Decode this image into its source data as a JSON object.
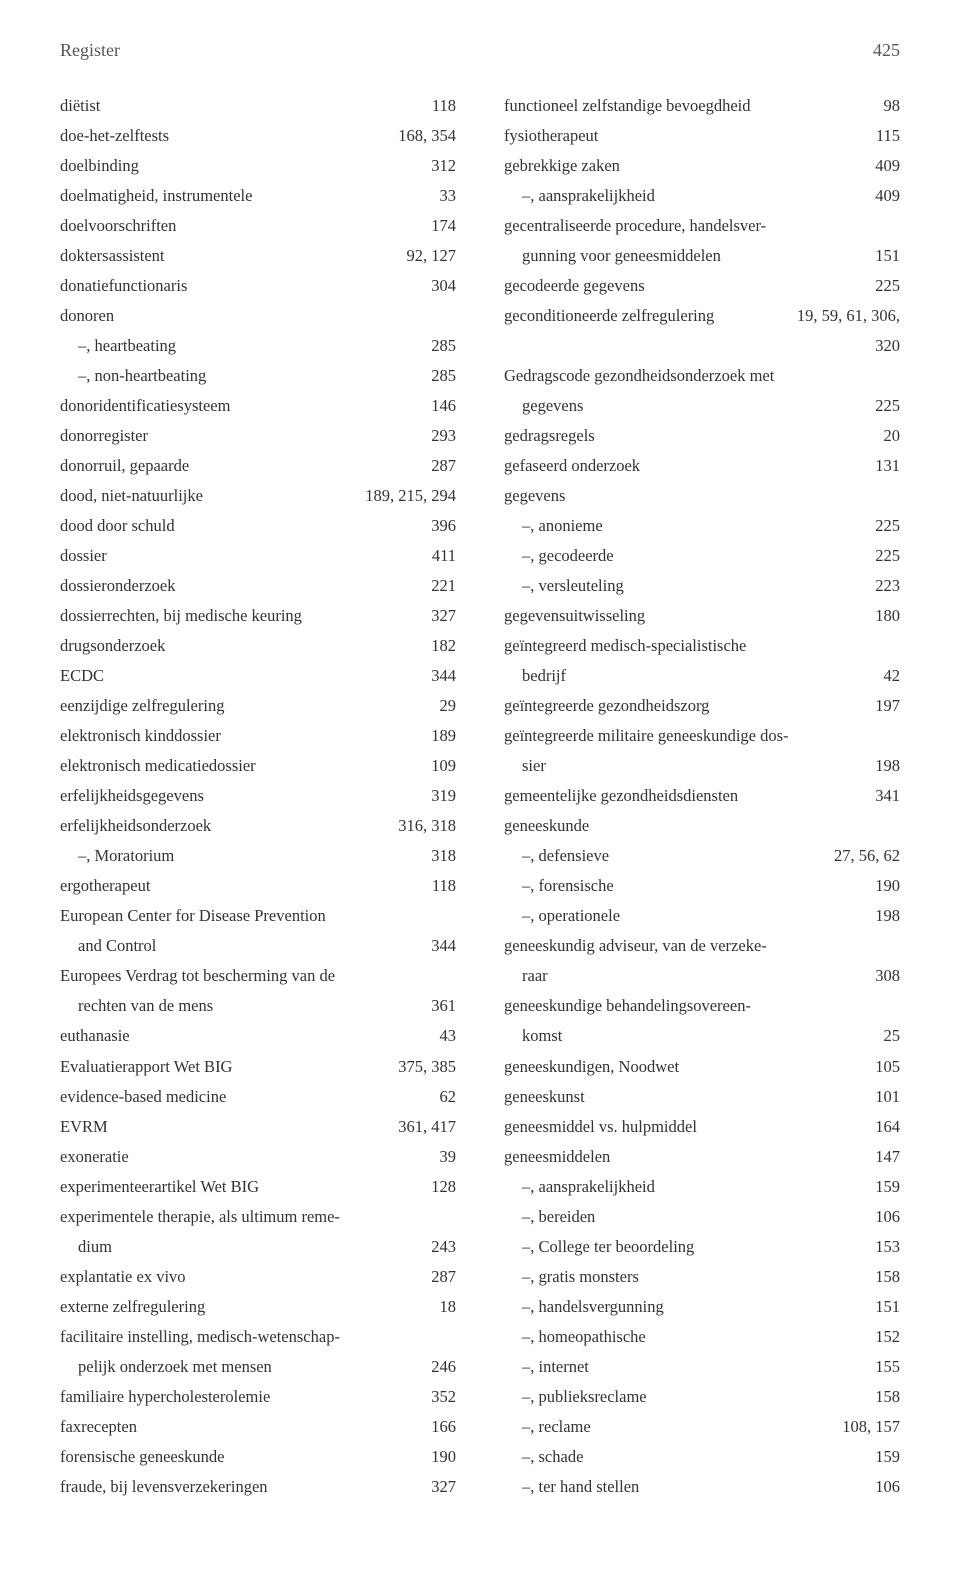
{
  "header": {
    "title": "Register",
    "page_number": "425"
  },
  "typography": {
    "body_fontsize_pt": 13,
    "header_fontsize_pt": 14,
    "line_height": 1.82,
    "text_color": "#333333",
    "header_color": "#555555",
    "background": "#ffffff"
  },
  "left": [
    {
      "term": "diëtist",
      "pages": "118"
    },
    {
      "term": "doe-het-zelftests",
      "pages": "168, 354"
    },
    {
      "term": "doelbinding",
      "pages": "312"
    },
    {
      "term": "doelmatigheid, instrumentele",
      "pages": "33"
    },
    {
      "term": "doelvoorschriften",
      "pages": "174"
    },
    {
      "term": "doktersassistent",
      "pages": "92, 127"
    },
    {
      "term": "donatiefunctionaris",
      "pages": "304"
    },
    {
      "term": "donoren",
      "pages": ""
    },
    {
      "term": "–, heartbeating",
      "pages": "285",
      "indent": 1
    },
    {
      "term": "–, non-heartbeating",
      "pages": "285",
      "indent": 1
    },
    {
      "term": "donoridentificatiesysteem",
      "pages": "146"
    },
    {
      "term": "donorregister",
      "pages": "293"
    },
    {
      "term": "donorruil, gepaarde",
      "pages": "287"
    },
    {
      "term": "dood, niet-natuurlijke",
      "pages": "189, 215, 294"
    },
    {
      "term": "dood door schuld",
      "pages": "396"
    },
    {
      "term": "dossier",
      "pages": "411"
    },
    {
      "term": "dossieronderzoek",
      "pages": "221"
    },
    {
      "term": "dossierrechten, bij medische keuring",
      "pages": "327"
    },
    {
      "term": "drugsonderzoek",
      "pages": "182"
    },
    {
      "term": "ECDC",
      "pages": "344"
    },
    {
      "term": "eenzijdige zelfregulering",
      "pages": "29"
    },
    {
      "term": "elektronisch kinddossier",
      "pages": "189"
    },
    {
      "term": "elektronisch medicatiedossier",
      "pages": "109"
    },
    {
      "term": "erfelijkheidsgegevens",
      "pages": "319"
    },
    {
      "term": "erfelijkheidsonderzoek",
      "pages": "316, 318"
    },
    {
      "term": "–, Moratorium",
      "pages": "318",
      "indent": 1
    },
    {
      "term": "ergotherapeut",
      "pages": "118"
    },
    {
      "term": "European Center for Disease Prevention",
      "pages": ""
    },
    {
      "term": "and Control",
      "pages": "344",
      "cont": true
    },
    {
      "term": "Europees Verdrag tot bescherming van de",
      "pages": ""
    },
    {
      "term": "rechten van de mens",
      "pages": "361",
      "cont": true
    },
    {
      "term": "euthanasie",
      "pages": "43"
    },
    {
      "term": "Evaluatierapport Wet BIG",
      "pages": "375, 385"
    },
    {
      "term": "evidence-based medicine",
      "pages": "62"
    },
    {
      "term": "EVRM",
      "pages": "361, 417"
    },
    {
      "term": "exoneratie",
      "pages": "39"
    },
    {
      "term": "experimenteerartikel Wet BIG",
      "pages": "128"
    },
    {
      "term": "experimentele therapie, als ultimum reme-",
      "pages": ""
    },
    {
      "term": "dium",
      "pages": "243",
      "cont": true
    },
    {
      "term": "explantatie ex vivo",
      "pages": "287"
    },
    {
      "term": "externe zelfregulering",
      "pages": "18"
    },
    {
      "term": "facilitaire instelling, medisch-wetenschap-",
      "pages": ""
    },
    {
      "term": "pelijk onderzoek met mensen",
      "pages": "246",
      "cont": true
    },
    {
      "term": "familiaire hypercholesterolemie",
      "pages": "352"
    },
    {
      "term": "faxrecepten",
      "pages": "166"
    },
    {
      "term": "forensische geneeskunde",
      "pages": "190"
    },
    {
      "term": "fraude, bij levensverzekeringen",
      "pages": "327"
    }
  ],
  "right": [
    {
      "term": "functioneel zelfstandige bevoegdheid",
      "pages": "98"
    },
    {
      "term": "fysiotherapeut",
      "pages": "115"
    },
    {
      "term": "gebrekkige zaken",
      "pages": "409"
    },
    {
      "term": "–, aansprakelijkheid",
      "pages": "409",
      "indent": 1
    },
    {
      "term": "gecentraliseerde procedure, handelsver-",
      "pages": ""
    },
    {
      "term": "gunning voor geneesmiddelen",
      "pages": "151",
      "cont": true
    },
    {
      "term": "gecodeerde gegevens",
      "pages": "225"
    },
    {
      "term": "geconditioneerde zelfregulering",
      "pages": "19, 59, 61, 306,"
    },
    {
      "term": "",
      "pages": "320",
      "blank": true
    },
    {
      "term": "Gedragscode gezondheidsonderzoek met",
      "pages": ""
    },
    {
      "term": "gegevens",
      "pages": "225",
      "cont": true
    },
    {
      "term": "gedragsregels",
      "pages": "20"
    },
    {
      "term": "gefaseerd onderzoek",
      "pages": "131"
    },
    {
      "term": "gegevens",
      "pages": ""
    },
    {
      "term": "–, anonieme",
      "pages": "225",
      "indent": 1
    },
    {
      "term": "–, gecodeerde",
      "pages": "225",
      "indent": 1
    },
    {
      "term": "–, versleuteling",
      "pages": "223",
      "indent": 1
    },
    {
      "term": "gegevensuitwisseling",
      "pages": "180"
    },
    {
      "term": "geïntegreerd medisch-specialistische",
      "pages": ""
    },
    {
      "term": "bedrijf",
      "pages": "42",
      "cont": true
    },
    {
      "term": "geïntegreerde gezondheidszorg",
      "pages": "197"
    },
    {
      "term": "geïntegreerde militaire geneeskundige dos-",
      "pages": ""
    },
    {
      "term": "sier",
      "pages": "198",
      "cont": true
    },
    {
      "term": "gemeentelijke gezondheidsdiensten",
      "pages": "341"
    },
    {
      "term": "geneeskunde",
      "pages": ""
    },
    {
      "term": "–, defensieve",
      "pages": "27, 56, 62",
      "indent": 1
    },
    {
      "term": "–, forensische",
      "pages": "190",
      "indent": 1
    },
    {
      "term": "–, operationele",
      "pages": "198",
      "indent": 1
    },
    {
      "term": "geneeskundig adviseur, van de verzeke-",
      "pages": ""
    },
    {
      "term": "raar",
      "pages": "308",
      "cont": true
    },
    {
      "term": "geneeskundige behandelingsovereen-",
      "pages": ""
    },
    {
      "term": "komst",
      "pages": "25",
      "cont": true
    },
    {
      "term": "geneeskundigen, Noodwet",
      "pages": "105"
    },
    {
      "term": "geneeskunst",
      "pages": "101"
    },
    {
      "term": "geneesmiddel vs. hulpmiddel",
      "pages": "164"
    },
    {
      "term": "geneesmiddelen",
      "pages": "147"
    },
    {
      "term": "–, aansprakelijkheid",
      "pages": "159",
      "indent": 1
    },
    {
      "term": "–, bereiden",
      "pages": "106",
      "indent": 1
    },
    {
      "term": "–, College ter beoordeling",
      "pages": "153",
      "indent": 1
    },
    {
      "term": "–, gratis monsters",
      "pages": "158",
      "indent": 1
    },
    {
      "term": "–, handelsvergunning",
      "pages": "151",
      "indent": 1
    },
    {
      "term": "–, homeopathische",
      "pages": "152",
      "indent": 1
    },
    {
      "term": "–, internet",
      "pages": "155",
      "indent": 1
    },
    {
      "term": "–, publieksreclame",
      "pages": "158",
      "indent": 1
    },
    {
      "term": "–, reclame",
      "pages": "108, 157",
      "indent": 1
    },
    {
      "term": "–, schade",
      "pages": "159",
      "indent": 1
    },
    {
      "term": "–, ter hand stellen",
      "pages": "106",
      "indent": 1
    }
  ]
}
